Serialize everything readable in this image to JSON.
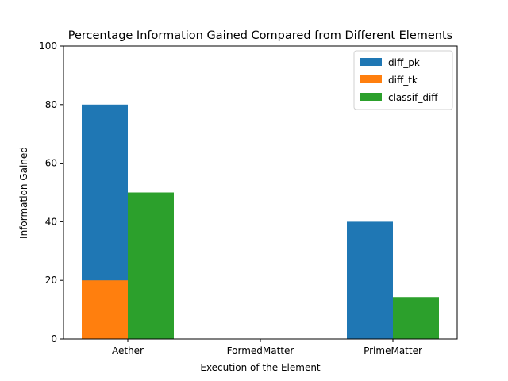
{
  "chart_data": {
    "type": "bar",
    "title": "Percentage Information Gained Compared from Different Elements",
    "xlabel": "Execution of the Element",
    "ylabel": "Information Gained",
    "categories": [
      "Aether",
      "FormedMatter",
      "PrimeMatter"
    ],
    "ylim": [
      0,
      100
    ],
    "yticks": [
      0,
      20,
      40,
      60,
      80,
      100
    ],
    "grid": false,
    "legend_position": "top-right",
    "series": [
      {
        "name": "diff_pk",
        "color": "#1f77b4",
        "values": [
          80,
          0,
          40
        ],
        "slot": 0
      },
      {
        "name": "diff_tk",
        "color": "#ff7f0e",
        "values": [
          20,
          0,
          0
        ],
        "slot": 0
      },
      {
        "name": "classif_diff",
        "color": "#2ca02c",
        "values": [
          50,
          0,
          14.3
        ],
        "slot": 1
      }
    ]
  }
}
